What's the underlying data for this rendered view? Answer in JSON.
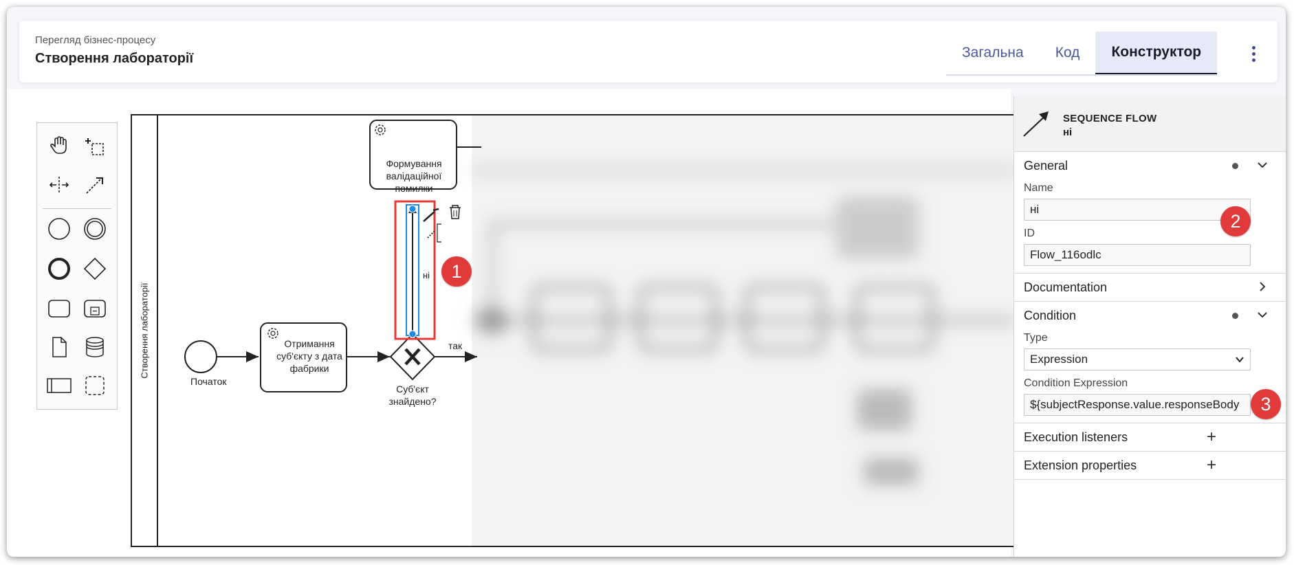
{
  "header": {
    "breadcrumb": "Перегляд бізнес-процесу",
    "title": "Створення лабораторії",
    "tabs": [
      {
        "label": "Загальна"
      },
      {
        "label": "Код"
      },
      {
        "label": "Конструктор",
        "active": true
      }
    ]
  },
  "diagram": {
    "pool_label": "Створення лабораторії",
    "start_event_label": "Початок",
    "task_receive": [
      "Отримання",
      "суб'єкту з дата",
      "фабрики"
    ],
    "task_error": [
      "Формування",
      "валідаційної",
      "помилки"
    ],
    "gateway_label": [
      "Суб'єкт",
      "знайдено?"
    ],
    "flow_no_label": "ні",
    "flow_yes_label": "так"
  },
  "palette": {
    "tools": [
      "hand-tool-icon",
      "lasso-tool-icon",
      "space-tool-icon",
      "global-connect-icon"
    ],
    "elements": [
      "start-event-icon",
      "intermediate-event-icon",
      "end-event-icon",
      "gateway-icon",
      "task-icon",
      "subprocess-icon",
      "data-object-icon",
      "data-store-icon",
      "pool-icon",
      "group-icon"
    ]
  },
  "properties": {
    "element_type": "SEQUENCE FLOW",
    "element_name": "ні",
    "general": {
      "title": "General",
      "name_label": "Name",
      "name_value": "ні",
      "id_label": "ID",
      "id_value": "Flow_116odlc"
    },
    "documentation": {
      "title": "Documentation"
    },
    "condition": {
      "title": "Condition",
      "type_label": "Type",
      "type_value": "Expression",
      "expr_label": "Condition Expression",
      "expr_value": "${subjectResponse.value.responseBody"
    },
    "execution_listeners": {
      "title": "Execution listeners"
    },
    "extension_properties": {
      "title": "Extension properties"
    }
  },
  "annotations": {
    "badge_1": "1",
    "badge_2": "2",
    "badge_3": "3",
    "badge_color": "#e03a3a"
  },
  "colors": {
    "accent": "#4a5a9c",
    "selection": "#1e88e5",
    "highlight": "#e53935"
  }
}
